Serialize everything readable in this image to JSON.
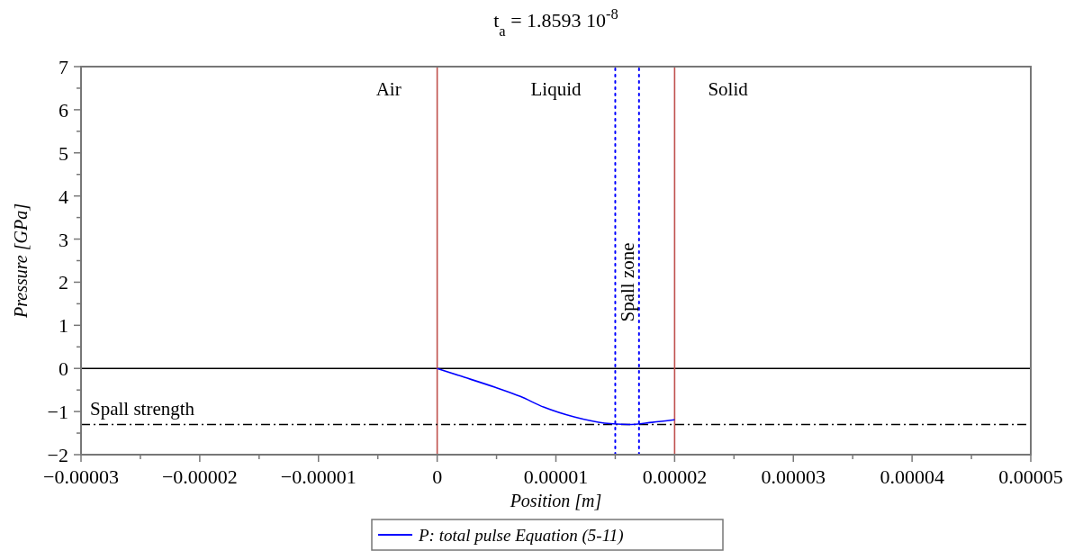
{
  "chart_data": {
    "type": "line",
    "title": "t$_{a}$ = 1.8593 10$^{-8}$",
    "xlabel": "Position [m]",
    "ylabel": "Pressure [GPa]",
    "xlim": [
      -3e-05,
      5e-05
    ],
    "xticks": [
      {
        "value": -3e-05,
        "label": "−0.00003"
      },
      {
        "value": -2e-05,
        "label": "−0.00002"
      },
      {
        "value": -1e-05,
        "label": "−0.00001"
      },
      {
        "value": 0,
        "label": "0"
      },
      {
        "value": 1e-05,
        "label": "0.00001"
      },
      {
        "value": 2e-05,
        "label": "0.00002"
      },
      {
        "value": 3e-05,
        "label": "0.00003"
      },
      {
        "value": 4e-05,
        "label": "0.00004"
      },
      {
        "value": 5e-05,
        "label": "0.00005"
      }
    ],
    "ylim": [
      -2,
      7
    ],
    "yticks": [
      {
        "value": -2,
        "label": "−2"
      },
      {
        "value": -1,
        "label": "−1"
      },
      0,
      1,
      2,
      3,
      4,
      5,
      6,
      7
    ],
    "series": [
      {
        "name": "P: total pulse Equation (5-11)",
        "color": "#0000ff",
        "x": [
          0,
          1.9e-06,
          4.9e-06,
          7e-06,
          9e-06,
          1.16e-05,
          1.41e-05,
          1.61e-05,
          1.81e-05,
          2e-05
        ],
        "values": [
          0,
          -0.17,
          -0.44,
          -0.65,
          -0.9,
          -1.13,
          -1.27,
          -1.3,
          -1.25,
          -1.19
        ]
      }
    ],
    "ref_lines": [
      {
        "axis": "y",
        "value": 0,
        "color": "#000000",
        "line_style": "solid"
      },
      {
        "axis": "x",
        "value": 0,
        "color": "#c0504d",
        "line_style": "solid"
      },
      {
        "axis": "x",
        "value": 2e-05,
        "color": "#c0504d",
        "line_style": "solid"
      },
      {
        "axis": "y",
        "value": -1.3,
        "label": "Spall strength",
        "color": "#000000",
        "line_style": "dashdot"
      },
      {
        "axis": "x",
        "value": 1.5e-05,
        "color": "#0000ff",
        "line_style": "dotted"
      },
      {
        "axis": "x",
        "value": 1.7e-05,
        "label": "Spall zone",
        "color": "#0000ff",
        "line_style": "dotted"
      }
    ],
    "annotations": [
      "Air",
      "Liquid",
      "Solid"
    ],
    "legend": "bottom",
    "marker": "none",
    "line_style": "solid",
    "grid": false
  }
}
